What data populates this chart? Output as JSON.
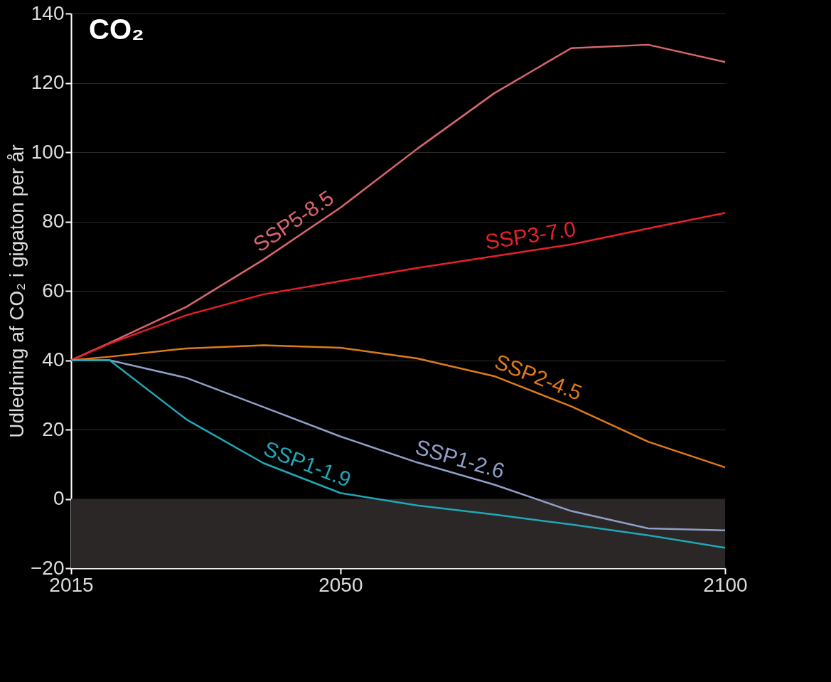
{
  "chart_data": {
    "type": "line",
    "title": "CO₂",
    "ylabel": "Udledning af CO₂ i gigaton per år",
    "x": [
      2015,
      2020,
      2030,
      2040,
      2050,
      2060,
      2070,
      2080,
      2090,
      2100
    ],
    "series": [
      {
        "name": "SSP5-8.5",
        "color": "#d9666e",
        "values": [
          40,
          45,
          55.4,
          69,
          84,
          101,
          117,
          130,
          131,
          126
        ]
      },
      {
        "name": "SSP3-7.0",
        "color": "#e8202a",
        "values": [
          40,
          44.8,
          53,
          59,
          62.8,
          66.6,
          70,
          73.4,
          78,
          82.5
        ]
      },
      {
        "name": "SSP2-4.5",
        "color": "#e07b18",
        "values": [
          40,
          41,
          43.4,
          44.3,
          43.6,
          40.5,
          35.4,
          26.7,
          16.5,
          9.1
        ]
      },
      {
        "name": "SSP1-2.6",
        "color": "#8fa0c8",
        "values": [
          40,
          40,
          34.9,
          26.5,
          18,
          10.5,
          4.1,
          -3.5,
          -8.5,
          -9.1
        ]
      },
      {
        "name": "SSP1-1.9",
        "color": "#20a8b8",
        "values": [
          40,
          40,
          22.9,
          10.3,
          1.7,
          -1.9,
          -4.5,
          -7.4,
          -10.5,
          -14.1
        ]
      }
    ],
    "xlim": [
      2015,
      2100
    ],
    "xticks": [
      2015,
      2050,
      2100
    ],
    "ylim": [
      -20,
      140
    ],
    "yticks": [
      -20,
      0,
      20,
      40,
      60,
      80,
      100,
      120,
      140
    ],
    "bands": [
      {
        "axis": "y",
        "from": -20,
        "to": 0,
        "color": "#2a2726"
      }
    ],
    "grid": "y",
    "legend": false
  }
}
